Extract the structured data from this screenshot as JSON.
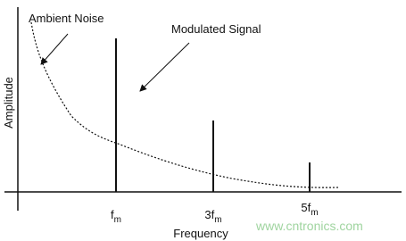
{
  "annotations": {
    "noise": "Ambient Noise",
    "signal": "Modulated Signal"
  },
  "axes": {
    "y_label": "Amplitude",
    "x_label": "Frequency"
  },
  "tick_labels": [
    {
      "main": "f",
      "sub": "m"
    },
    {
      "main": "3f",
      "sub": "m"
    },
    {
      "main": "5f",
      "sub": "m"
    }
  ],
  "watermark": "www.cntronics.com"
}
